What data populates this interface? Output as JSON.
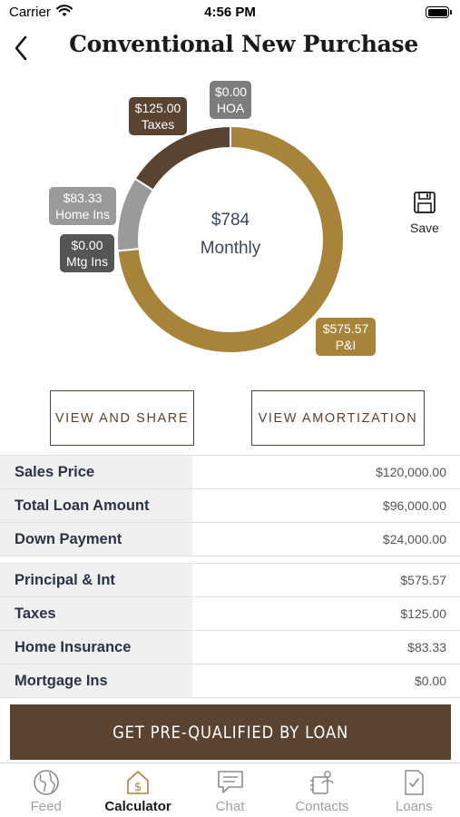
{
  "status_bar": {
    "carrier": "Carrier",
    "time": "4:56 PM"
  },
  "header": {
    "title": "Conventional New Purchase"
  },
  "chart_data": {
    "type": "pie",
    "variant": "donut",
    "center": {
      "amount": "$784",
      "label": "Monthly"
    },
    "slices": [
      {
        "label": "P&I",
        "value": 575.57,
        "display": "$575.57",
        "color": "#a8833a"
      },
      {
        "label": "Mtg Ins",
        "value": 0.0,
        "display": "$0.00",
        "color": "#555555"
      },
      {
        "label": "Home Ins",
        "value": 83.33,
        "display": "$83.33",
        "color": "#9a9a9a"
      },
      {
        "label": "Taxes",
        "value": 125.0,
        "display": "$125.00",
        "color": "#5a4331"
      },
      {
        "label": "HOA",
        "value": 0.0,
        "display": "$0.00",
        "color": "#7d7d7d"
      }
    ]
  },
  "save": {
    "label": "Save"
  },
  "actions": {
    "share_label": "VIEW AND SHARE",
    "amortization_label": "VIEW AMORTIZATION"
  },
  "loan_table": [
    {
      "label": "Sales Price",
      "value": "$120,000.00"
    },
    {
      "label": "Total Loan Amount",
      "value": "$96,000.00"
    },
    {
      "label": "Down Payment",
      "value": "$24,000.00"
    }
  ],
  "payment_table": [
    {
      "label": "Principal & Int",
      "value": "$575.57"
    },
    {
      "label": "Taxes",
      "value": "$125.00"
    },
    {
      "label": "Home Insurance",
      "value": "$83.33"
    },
    {
      "label": "Mortgage Ins",
      "value": "$0.00"
    }
  ],
  "cta": {
    "label": "GET PRE-QUALIFIED BY LOAN"
  },
  "tabs": [
    {
      "label": "Feed",
      "icon": "globe-icon",
      "active": false
    },
    {
      "label": "Calculator",
      "icon": "calculator-icon",
      "active": true
    },
    {
      "label": "Chat",
      "icon": "chat-icon",
      "active": false
    },
    {
      "label": "Contacts",
      "icon": "contacts-icon",
      "active": false
    },
    {
      "label": "Loans",
      "icon": "loans-icon",
      "active": false
    }
  ],
  "colors": {
    "brand_brown": "#5a4331",
    "brand_gold": "#a8833a",
    "label_text": "#2a3347"
  }
}
